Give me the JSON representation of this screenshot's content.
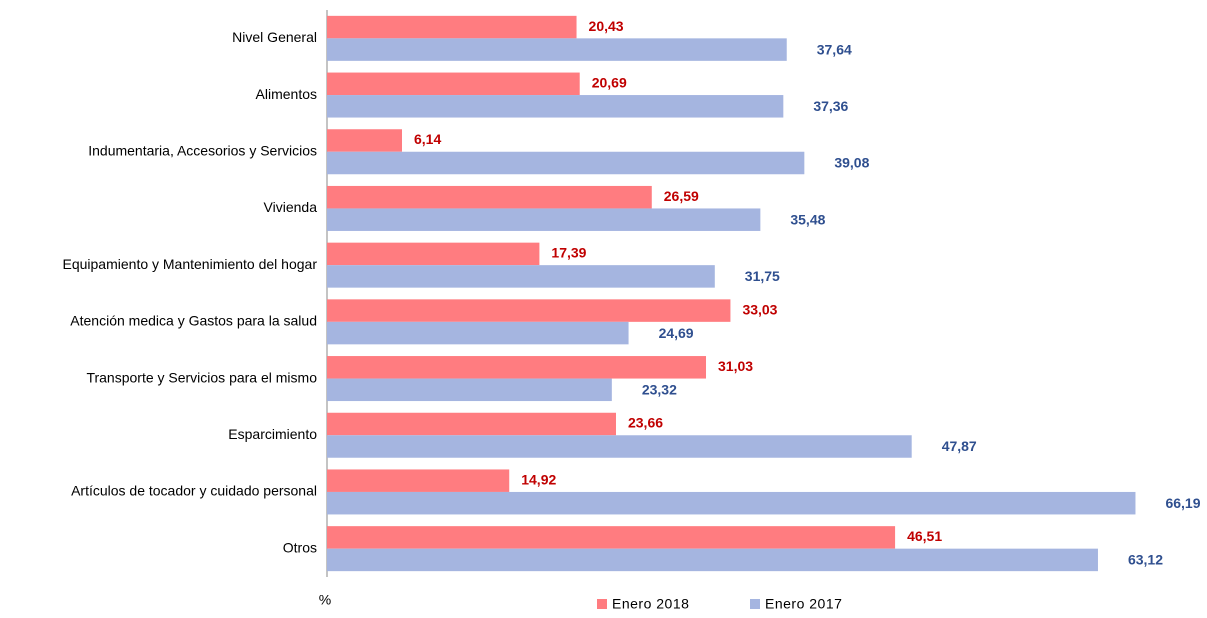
{
  "chart_data": {
    "type": "hbar",
    "xlabel": "%",
    "categories": [
      "Nivel General",
      "Alimentos",
      "Indumentaria, Accesorios y Servicios",
      "Vivienda",
      "Equipamiento y Mantenimiento del hogar",
      "Atención medica y Gastos para la salud",
      "Transporte y Servicios para el mismo",
      "Esparcimiento",
      "Artículos de tocador y cuidado personal",
      "Otros"
    ],
    "series": [
      {
        "name": "Enero 2018",
        "color": "#ff7c80",
        "label_color": "#c00000",
        "values": [
          20.43,
          20.69,
          6.14,
          26.59,
          17.39,
          33.03,
          31.03,
          23.66,
          14.92,
          46.51
        ],
        "value_labels": [
          "20,43",
          "20,69",
          "6,14",
          "26,59",
          "17,39",
          "33,03",
          "31,03",
          "23,66",
          "14,92",
          "46,51"
        ]
      },
      {
        "name": "Enero 2017",
        "color": "#a5b5e0",
        "label_color": "#2f4f8f",
        "values": [
          37.64,
          37.36,
          39.08,
          35.48,
          31.75,
          24.69,
          23.32,
          47.87,
          66.19,
          63.12
        ],
        "value_labels": [
          "37,64",
          "37,36",
          "39,08",
          "35,48",
          "31,75",
          "24,69",
          "23,32",
          "47,87",
          "66,19",
          "63,12"
        ]
      }
    ],
    "xlim": [
      0,
      70
    ],
    "legend": "bottom"
  }
}
